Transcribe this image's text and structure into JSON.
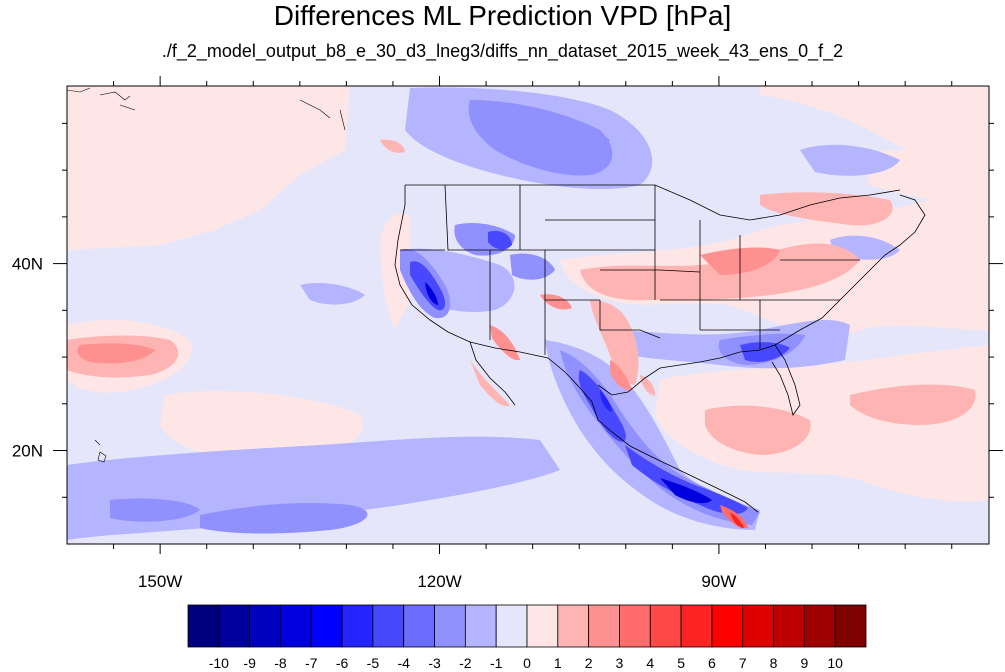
{
  "title": "Differences ML Prediction VPD [hPa]",
  "subtitle": "./f_2_model_output_b8_e_30_d3_lneg3/diffs_nn_dataset_2015_week_43_ens_0_f_2",
  "map": {
    "lon_range": [
      -160,
      -61
    ],
    "lat_range": [
      10,
      59
    ],
    "x_ticks": [
      {
        "value": -150,
        "label": "150W"
      },
      {
        "value": -120,
        "label": "120W"
      },
      {
        "value": -90,
        "label": "90W"
      }
    ],
    "y_ticks": [
      {
        "value": 40,
        "label": "40N"
      },
      {
        "value": 20,
        "label": "20N"
      }
    ]
  },
  "colorbar": {
    "colors": [
      "#00007f",
      "#00009f",
      "#0000bf",
      "#0000df",
      "#0000ff",
      "#2424ff",
      "#4848ff",
      "#6c6cff",
      "#9090ff",
      "#b4b4ff",
      "#e6e6fa",
      "#ffe6e6",
      "#ffb4b4",
      "#ff9090",
      "#ff6c6c",
      "#ff4848",
      "#ff2424",
      "#ff0000",
      "#df0000",
      "#bf0000",
      "#9f0000",
      "#7f0000"
    ],
    "labels": [
      "-10",
      "-9",
      "-8",
      "-7",
      "-6",
      "-5",
      "-4",
      "-3",
      "-2",
      "-1",
      "0",
      "1",
      "2",
      "3",
      "4",
      "5",
      "6",
      "7",
      "8",
      "9",
      "10"
    ]
  }
}
